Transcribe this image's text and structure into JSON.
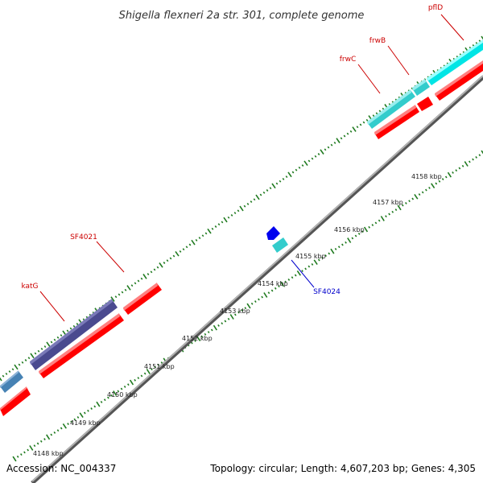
{
  "title": "Shigella flexneri 2a str. 301, complete genome",
  "footer": {
    "accession": "Accession: NC_004337",
    "summary": "Topology: circular; Length: 4,607,203 bp; Genes: 4,305"
  },
  "colors": {
    "backbone": "#888888",
    "ticks": "#1f7a1f",
    "red_gene": "#ff0000",
    "red_label": "#cc0000",
    "blue_label": "#0000cc",
    "cyan_gene": "#33cccc",
    "navy_gene": "#4a4a8f",
    "steel_gene": "#4682b4",
    "blue_gene": "#0000ee"
  },
  "scale_labels": [
    "4148 kbp",
    "4149 kbp",
    "4150 kbp",
    "4151 kbp",
    "4152 kbp",
    "4153 kbp",
    "4154 kbp",
    "4155 kbp",
    "4156 kbp",
    "4157 kbp",
    "4158 kbp"
  ],
  "gene_labels": [
    {
      "text": "pflD",
      "color": "red"
    },
    {
      "text": "frwB",
      "color": "red"
    },
    {
      "text": "frwC",
      "color": "red"
    },
    {
      "text": "SF4021",
      "color": "red"
    },
    {
      "text": "katG",
      "color": "red"
    },
    {
      "text": "SF4024",
      "color": "blue"
    }
  ]
}
